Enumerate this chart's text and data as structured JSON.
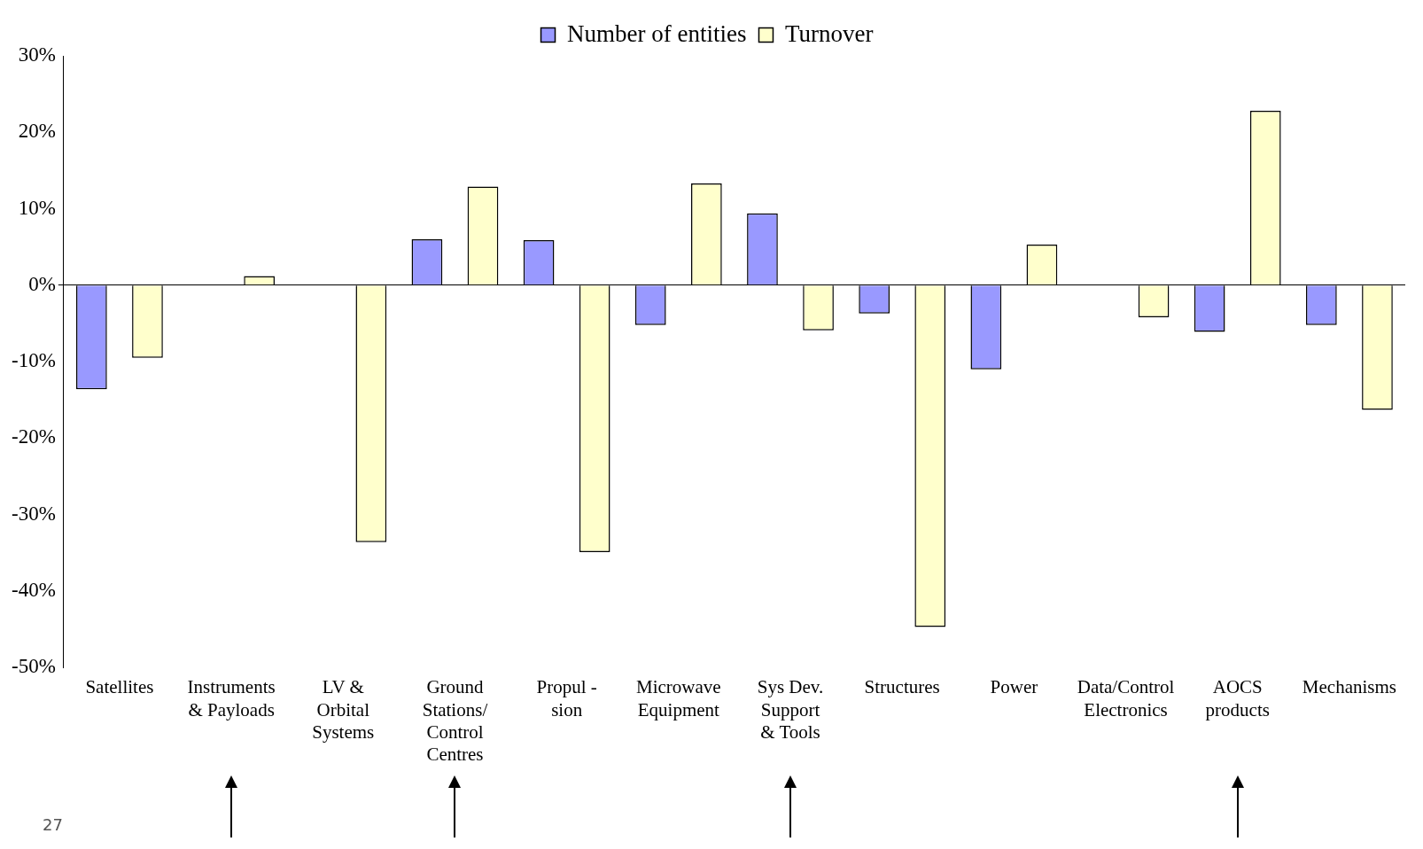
{
  "chart_data": {
    "type": "bar",
    "categories": [
      "Satellites",
      "Instruments\n& Payloads",
      "LV &\nOrbital\nSystems",
      "Ground\nStations/\nControl\nCentres",
      "Propul -\nsion",
      "Microwave\nEquipment",
      "Sys Dev.\nSupport\n& Tools",
      "Structures",
      "Power",
      "Data/Control\nElectronics",
      "AOCS\nproducts",
      "Mechanisms"
    ],
    "series": [
      {
        "name": "Number of entities",
        "color": "#9999ff",
        "values": [
          -13.6,
          0,
          0,
          6.0,
          5.9,
          -5.2,
          9.4,
          -3.7,
          -11.0,
          0,
          -6.1,
          -5.2
        ]
      },
      {
        "name": "Turnover",
        "color": "#ffffcc",
        "values": [
          -9.5,
          1.2,
          -33.6,
          12.9,
          -34.9,
          13.3,
          -5.9,
          -44.7,
          5.3,
          -4.2,
          22.8,
          -16.3
        ]
      }
    ],
    "ylim": [
      -50,
      30
    ],
    "yticks": [
      {
        "value": -50,
        "label": "-50%"
      },
      {
        "value": -40,
        "label": "-40%"
      },
      {
        "value": -30,
        "label": "-30%"
      },
      {
        "value": -20,
        "label": "-20%"
      },
      {
        "value": -10,
        "label": "-10%"
      },
      {
        "value": 0,
        "label": "0%"
      },
      {
        "value": 10,
        "label": "10%"
      },
      {
        "value": 20,
        "label": "20%"
      },
      {
        "value": 30,
        "label": "30%"
      }
    ],
    "legend": "top",
    "annotations": [
      "27"
    ]
  }
}
